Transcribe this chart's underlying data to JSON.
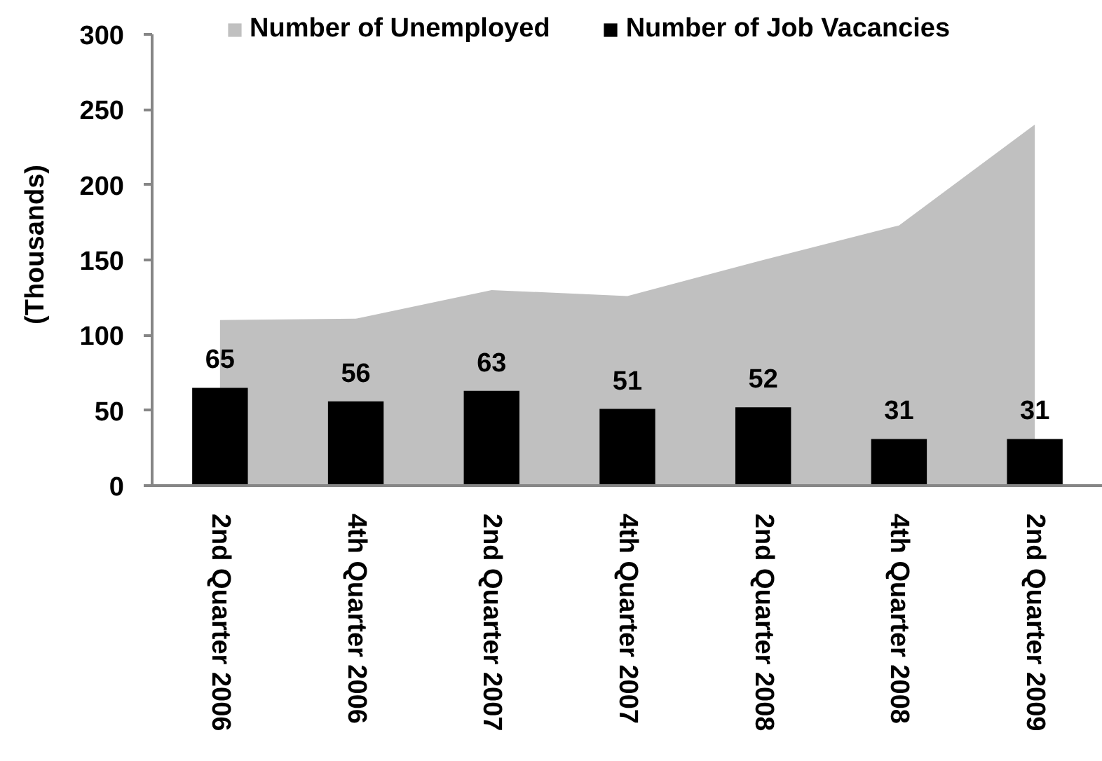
{
  "chart_data": {
    "type": "bar",
    "categories": [
      "2nd Quarter 2006",
      "4th Quarter 2006",
      "2nd Quarter 2007",
      "4th  Quarter 2007",
      "2nd Quarter 2008",
      "4th Quarter 2008",
      "2nd Quarter 2009"
    ],
    "series": [
      {
        "name": "Number of Unemployed",
        "type": "area",
        "color": "#c0c0c0",
        "values": [
          110,
          111,
          130,
          126,
          150,
          173,
          240
        ]
      },
      {
        "name": "Number of Job Vacancies",
        "color": "#000000",
        "values": [
          65,
          56,
          63,
          51,
          52,
          31,
          31
        ],
        "data_labels": true
      }
    ],
    "ylabel": "(Thousands)",
    "ylim": [
      0,
      300
    ],
    "yticks": [
      0,
      50,
      100,
      150,
      200,
      250,
      300
    ],
    "legend": "top",
    "grid": false
  }
}
